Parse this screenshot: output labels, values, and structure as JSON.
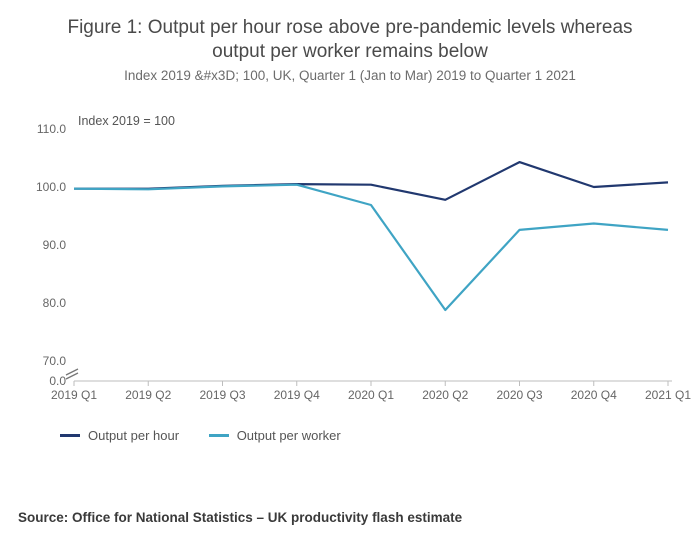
{
  "title": "Figure 1: Output per hour rose above pre-pandemic levels whereas output per worker remains below",
  "subtitle": "Index 2019 &#x3D; 100, UK, Quarter 1 (Jan to Mar) 2019 to Quarter 1 2021",
  "axis_title": "Index 2019 = 100",
  "source": "Source: Office for National Statistics – UK productivity flash estimate",
  "chart": {
    "type": "line",
    "background_color": "#ffffff",
    "grid_color": "#bdbdbd",
    "x_categories": [
      "2019 Q1",
      "2019 Q2",
      "2019 Q3",
      "2019 Q4",
      "2020 Q1",
      "2020 Q2",
      "2020 Q3",
      "2020 Q4",
      "2021 Q1"
    ],
    "y_ticks": [
      0.0,
      70.0,
      80.0,
      90.0,
      100.0,
      110.0
    ],
    "y_min_main": 70.0,
    "y_max_main": 110.0,
    "broken_axis": true,
    "line_width": 2.2,
    "label_fontsize": 12,
    "series": [
      {
        "name": "Output per hour",
        "color": "#21386f",
        "values": [
          99.7,
          99.7,
          100.2,
          100.5,
          100.4,
          97.8,
          104.3,
          100.0,
          100.8
        ]
      },
      {
        "name": "Output per worker",
        "color": "#3fa4c4",
        "values": [
          99.7,
          99.6,
          100.1,
          100.4,
          96.9,
          78.8,
          92.6,
          93.7,
          92.6
        ]
      }
    ]
  },
  "legend": {
    "items": [
      {
        "label": "Output per hour",
        "color": "#21386f"
      },
      {
        "label": "Output per worker",
        "color": "#3fa4c4"
      }
    ]
  }
}
